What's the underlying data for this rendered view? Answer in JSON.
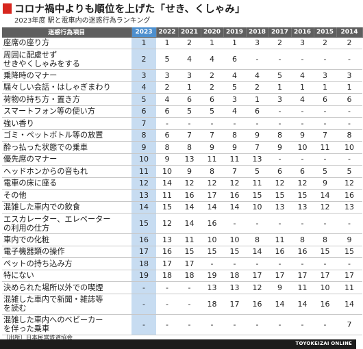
{
  "header": {
    "title": "コロナ禍中よりも順位を上げた「せき、くしゃみ」",
    "subtitle": "2023年度 駅と電車内の迷惑行為ランキング"
  },
  "colors": {
    "accent_red": "#d7261e",
    "header_gray": "#5f5f5f",
    "highlight_blue": "#4d8fce",
    "highlight_light": "#c7dcf1"
  },
  "chart_data": {
    "type": "table",
    "columns": [
      "迷惑行為項目",
      "2023",
      "2022",
      "2021",
      "2020",
      "2019",
      "2018",
      "2017",
      "2016",
      "2015",
      "2014"
    ],
    "rows": [
      {
        "label": [
          "座席の座り方"
        ],
        "values": [
          "1",
          "1",
          "2",
          "1",
          "1",
          "3",
          "2",
          "3",
          "2",
          "2"
        ]
      },
      {
        "label": [
          "周囲に配慮せず",
          "せきやくしゃみをする"
        ],
        "values": [
          "2",
          "5",
          "4",
          "4",
          "6",
          "-",
          "-",
          "-",
          "-",
          "-"
        ]
      },
      {
        "label": [
          "乗降時のマナー"
        ],
        "values": [
          "3",
          "3",
          "3",
          "2",
          "4",
          "4",
          "5",
          "4",
          "3",
          "3"
        ]
      },
      {
        "label": [
          "騒々しい会話・はしゃぎまわり"
        ],
        "values": [
          "4",
          "2",
          "1",
          "2",
          "5",
          "2",
          "1",
          "1",
          "1",
          "1"
        ]
      },
      {
        "label": [
          "荷物の持ち方・置き方"
        ],
        "values": [
          "5",
          "4",
          "6",
          "6",
          "3",
          "1",
          "3",
          "4",
          "6",
          "6"
        ]
      },
      {
        "label": [
          "スマートフォン等の使い方"
        ],
        "values": [
          "6",
          "6",
          "5",
          "5",
          "4",
          "6",
          "-",
          "-",
          "-",
          "-"
        ]
      },
      {
        "label": [
          "強い香り"
        ],
        "values": [
          "7",
          "-",
          "-",
          "-",
          "-",
          "-",
          "-",
          "-",
          "-",
          "-"
        ]
      },
      {
        "label": [
          "ゴミ・ペットボトル等の放置"
        ],
        "values": [
          "8",
          "6",
          "7",
          "7",
          "8",
          "9",
          "8",
          "9",
          "7",
          "8"
        ]
      },
      {
        "label": [
          "酔っ払った状態での乗車"
        ],
        "values": [
          "9",
          "8",
          "8",
          "9",
          "9",
          "7",
          "9",
          "10",
          "11",
          "10"
        ]
      },
      {
        "label": [
          "優先席のマナー"
        ],
        "values": [
          "10",
          "9",
          "13",
          "11",
          "11",
          "13",
          "-",
          "-",
          "-",
          "-"
        ]
      },
      {
        "label": [
          "ヘッドホンからの音もれ"
        ],
        "values": [
          "11",
          "10",
          "9",
          "8",
          "7",
          "5",
          "6",
          "6",
          "5",
          "5"
        ]
      },
      {
        "label": [
          "電車の床に座る"
        ],
        "values": [
          "12",
          "14",
          "12",
          "12",
          "12",
          "11",
          "12",
          "12",
          "9",
          "12"
        ]
      },
      {
        "label": [
          "その他"
        ],
        "values": [
          "13",
          "11",
          "16",
          "17",
          "16",
          "15",
          "15",
          "15",
          "14",
          "16"
        ]
      },
      {
        "label": [
          "混雑した車内での飲食"
        ],
        "values": [
          "14",
          "15",
          "14",
          "14",
          "14",
          "10",
          "13",
          "13",
          "12",
          "13"
        ]
      },
      {
        "label": [
          "エスカレーター、エレベーター",
          "の利用の仕方"
        ],
        "values": [
          "15",
          "12",
          "14",
          "16",
          "-",
          "-",
          "-",
          "-",
          "-",
          "-"
        ]
      },
      {
        "label": [
          "車内での化粧"
        ],
        "values": [
          "16",
          "13",
          "11",
          "10",
          "10",
          "8",
          "11",
          "8",
          "8",
          "9"
        ]
      },
      {
        "label": [
          "電子機器類の操作"
        ],
        "values": [
          "17",
          "16",
          "15",
          "15",
          "15",
          "14",
          "16",
          "16",
          "15",
          "15"
        ]
      },
      {
        "label": [
          "ペットの持ち込み方"
        ],
        "values": [
          "18",
          "17",
          "17",
          "-",
          "-",
          "-",
          "-",
          "-",
          "-",
          "-"
        ]
      },
      {
        "label": [
          "特にない"
        ],
        "values": [
          "19",
          "18",
          "18",
          "19",
          "18",
          "17",
          "17",
          "17",
          "17",
          "17"
        ]
      },
      {
        "label": [
          "決められた場所以外での喫煙"
        ],
        "values": [
          "-",
          "-",
          "-",
          "13",
          "13",
          "12",
          "9",
          "11",
          "10",
          "11"
        ]
      },
      {
        "label": [
          "混雑した車内で新聞・雑誌等",
          "を読む"
        ],
        "values": [
          "-",
          "-",
          "-",
          "18",
          "17",
          "16",
          "14",
          "14",
          "16",
          "14"
        ]
      },
      {
        "label": [
          "混雑した車内へのベビーカー",
          "を伴った乗車"
        ],
        "values": [
          "-",
          "-",
          "-",
          "-",
          "-",
          "-",
          "-",
          "-",
          "-",
          "7"
        ]
      }
    ]
  },
  "footer": {
    "source": "（出所）日本民営鉄道協会",
    "brand": "TOYOKEIZAI ONLINE"
  }
}
